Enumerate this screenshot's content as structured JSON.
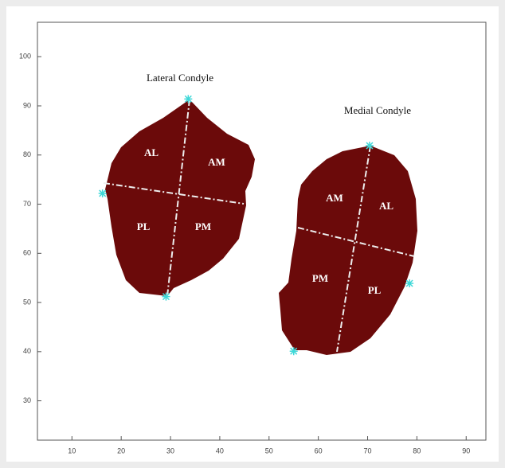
{
  "chart_data": {
    "type": "scatter",
    "x": [
      33.6,
      29.1,
      16.2,
      70.4,
      78.5,
      55
    ],
    "y": [
      91.4,
      51.2,
      72.2,
      81.9,
      53.9,
      40.1
    ],
    "color": "#3fd8d8",
    "xlim": [
      3,
      94
    ],
    "ylim": [
      22,
      107
    ],
    "xticks": [
      10,
      20,
      30,
      40,
      50,
      60,
      70,
      80,
      90
    ],
    "yticks": [
      30,
      40,
      50,
      60,
      70,
      80,
      90,
      100
    ],
    "grid": false,
    "annotations": [
      "Lateral Condyle",
      "Medial Condyle",
      "AL",
      "AM",
      "PL",
      "PM",
      "AM",
      "AL",
      "PM",
      "PL"
    ]
  }
}
